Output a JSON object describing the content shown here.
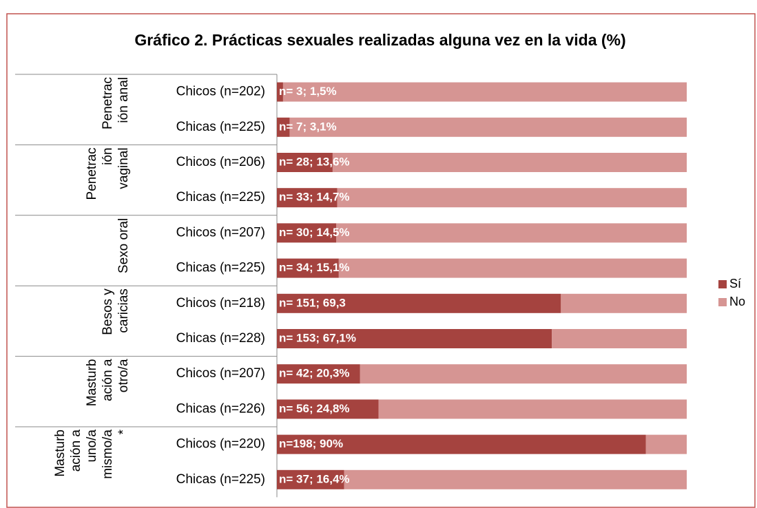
{
  "chart_data": {
    "type": "stacked_barh",
    "title": "Gráfico 2. Prácticas sexuales realizadas alguna vez en la vida (%)",
    "groups": [
      {
        "lines": [
          "Penetrac",
          "ión anal"
        ],
        "size": 2
      },
      {
        "lines": [
          "Penetrac",
          "ión",
          "vaginal"
        ],
        "size": 2
      },
      {
        "lines": [
          "Sexo oral"
        ],
        "size": 2
      },
      {
        "lines": [
          "Besos y",
          "caricias"
        ],
        "size": 2
      },
      {
        "lines": [
          "Masturb",
          "ación a",
          "otro/a"
        ],
        "size": 2
      },
      {
        "lines": [
          "Masturb",
          "ación a",
          "uno/a",
          "mismo/a",
          "*"
        ],
        "size": 2
      }
    ],
    "categories": [
      "Chicos (n=202)",
      "Chicas (n=225)",
      "Chicos (n=206)",
      "Chicas (n=225)",
      "Chicos (n=207)",
      "Chicas (n=225)",
      "Chicos (n=218)",
      "Chicas (n=228)",
      "Chicos (n=207)",
      "Chicas (n=226)",
      "Chicos (n=220)",
      "Chicas (n=225)"
    ],
    "series": [
      {
        "name": "Sí",
        "color": "#a5433f",
        "values": [
          1.5,
          3.1,
          13.6,
          14.7,
          14.5,
          15.1,
          69.3,
          67.1,
          20.3,
          24.8,
          90,
          16.4
        ],
        "value_labels": [
          "n= 3; 1,5%",
          "n= 7; 3,1%",
          "n= 28; 13,6%",
          "n= 33; 14,7%",
          "n= 30; 14,5%",
          "n= 34; 15,1%",
          "n= 151; 69,3",
          "n= 153; 67,1%",
          "n= 42; 20,3%",
          "n= 56; 24,8%",
          "n=198; 90%",
          "n= 37; 16,4%"
        ]
      },
      {
        "name": "No",
        "color": "#d69593",
        "values": [
          98.5,
          96.9,
          86.4,
          85.3,
          85.5,
          84.9,
          30.7,
          32.9,
          79.7,
          75.2,
          10,
          83.6
        ]
      }
    ],
    "xlim": [
      0,
      100
    ],
    "legend": "right"
  }
}
